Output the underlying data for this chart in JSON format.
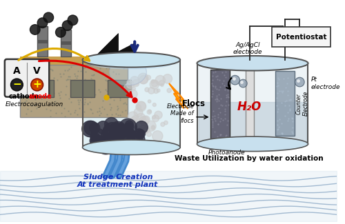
{
  "bg_color": "#ffffff",
  "water_wave_color": "#7799bb",
  "water_fill_color": "#c8dde8",
  "factory_wall_color": "#b8a888",
  "factory_roof_color": "#111111",
  "chimney_color": "#777777",
  "smoke_color": "#111111",
  "tank_outline": "#444444",
  "tank_water_color": "#c0d8e8",
  "floc_color": "#aaaaaa",
  "sludge_color": "#444455",
  "arrow_dark_blue": "#1a2a7c",
  "arrow_red": "#dd0000",
  "arrow_yellow": "#ddaa00",
  "lightning_yellow": "#ffcc00",
  "lightning_orange": "#ff8800",
  "h2o_red": "#cc0000",
  "av_box_color": "#f0f0f0",
  "potentiostat_color": "#f5f5f5",
  "electrode_light": "#e0e0e0",
  "electrode_dark": "#555566",
  "counter_electrode_color": "#8899aa",
  "labels": {
    "cathode": "cathode",
    "anode": "anode",
    "electrocoagulation": "Electrocoagulation",
    "flocs": "Flocs",
    "sludge": "Sludge Creation\nAt treatment plant",
    "electrode_flocs": "Electrode\nMade of\nflocs",
    "photoanode": "Photoanode",
    "counter_electrode": "Counter\nElectrode",
    "ag_agcl": "Ag/AgCl\nelectrode",
    "pt_electrode": "Pt\nelectrode",
    "potentiostat": "Potentiostat",
    "waste_util": "Waste Utilization by water oxidation",
    "h2o": "H₂O"
  }
}
